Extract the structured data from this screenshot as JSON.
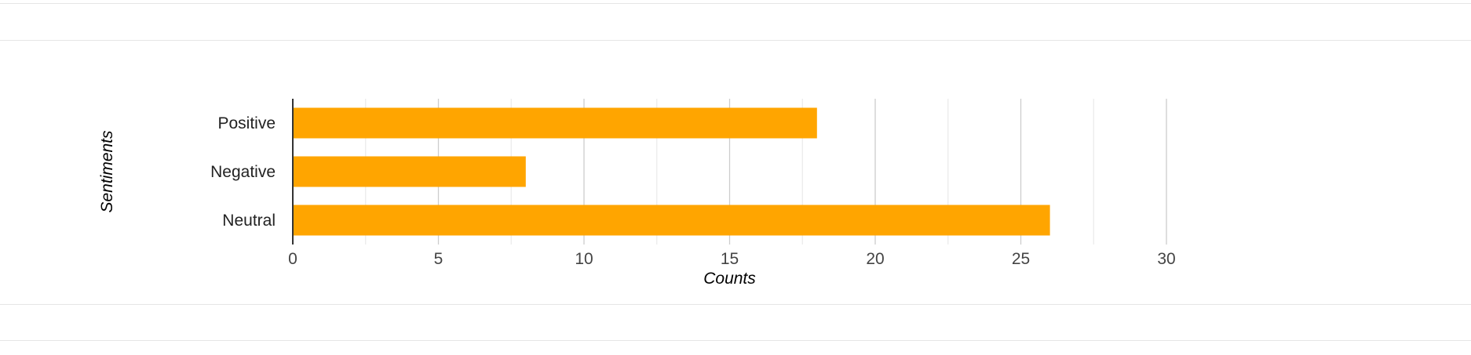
{
  "chart_data": {
    "type": "bar",
    "orientation": "horizontal",
    "categories": [
      "Positive",
      "Negative",
      "Neutral"
    ],
    "values": [
      18,
      8,
      26
    ],
    "xlabel": "Counts",
    "ylabel": "Sentiments",
    "xlim": [
      0,
      30
    ],
    "xticks": [
      "0",
      "5",
      "10",
      "15",
      "20",
      "25",
      "30"
    ],
    "grid": true,
    "legend": "none",
    "bar_color": "#FFA500"
  }
}
